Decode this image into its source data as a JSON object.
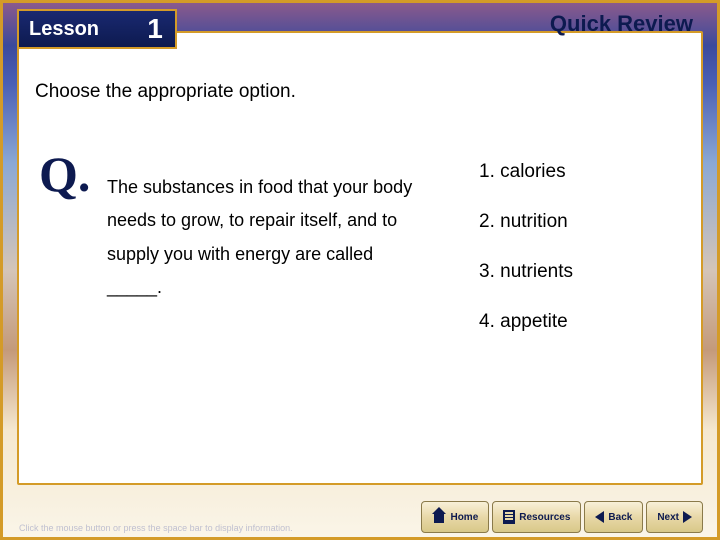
{
  "header": {
    "lesson_label": "Lesson",
    "lesson_number": "1",
    "section_title": "Quick Review"
  },
  "content": {
    "instruction": "Choose the appropriate option.",
    "q_label": "Q.",
    "question": "The substances in food that your body needs to grow, to repair itself, and to supply you with energy are called _____.",
    "options": [
      "1. calories",
      "2. nutrition",
      "3. nutrients",
      "4. appetite"
    ]
  },
  "footer": {
    "hint": "Click the mouse button or press the space bar to display information.",
    "nav": {
      "home": "Home",
      "resources": "Resources",
      "back": "Back",
      "next": "Next"
    }
  },
  "colors": {
    "frame_border": "#d49b28",
    "deep_navy": "#0d1a50",
    "panel_bg": "#ffffff"
  }
}
